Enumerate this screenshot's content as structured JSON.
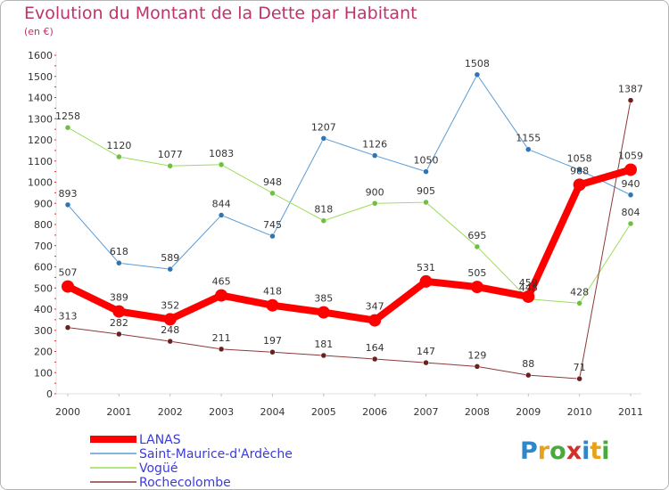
{
  "title": "Evolution du Montant de la Dette par Habitant",
  "subtitle": "(en €)",
  "brand": {
    "letters": [
      {
        "char": "P",
        "color": "#2f86c8"
      },
      {
        "char": "r",
        "color": "#e8a21a"
      },
      {
        "char": "o",
        "color": "#49a83e"
      },
      {
        "char": "x",
        "color": "#d0312d"
      },
      {
        "char": "i",
        "color": "#2f86c8"
      },
      {
        "char": "t",
        "color": "#e8a21a"
      },
      {
        "char": "i",
        "color": "#49a83e"
      }
    ]
  },
  "chart_data": {
    "type": "line",
    "x": [
      "2000",
      "2001",
      "2002",
      "2003",
      "2004",
      "2005",
      "2006",
      "2007",
      "2008",
      "2009",
      "2010",
      "2011"
    ],
    "ylim": [
      0,
      1600
    ],
    "yticks": [
      0,
      100,
      200,
      300,
      400,
      500,
      600,
      700,
      800,
      900,
      1000,
      1100,
      1200,
      1300,
      1400,
      1500,
      1600
    ],
    "grid": false,
    "legend_position": "bottom-left",
    "series": [
      {
        "name": "Saint-Maurice-d'Ardèche",
        "color": "#5b9bd5",
        "marker": "#2e75b6",
        "width": 1,
        "values": [
          893,
          618,
          589,
          844,
          745,
          1207,
          1126,
          1050,
          1508,
          1155,
          1058,
          940
        ]
      },
      {
        "name": "Vogüé",
        "color": "#9cdd5b",
        "marker": "#70c040",
        "width": 1,
        "values": [
          1258,
          1120,
          1077,
          1083,
          948,
          818,
          900,
          905,
          695,
          448,
          428,
          804
        ]
      },
      {
        "name": "Rochecolombe",
        "color": "#8b3a3a",
        "marker": "#6b1f1f",
        "width": 1,
        "values": [
          313,
          282,
          248,
          211,
          197,
          181,
          164,
          147,
          129,
          88,
          71,
          1387
        ]
      },
      {
        "name": "LANAS",
        "color": "#ff0000",
        "marker": "#ff0000",
        "width": 8,
        "values": [
          507,
          389,
          352,
          465,
          418,
          385,
          347,
          531,
          505,
          459,
          988,
          1059
        ]
      }
    ],
    "data_labels": [
      {
        "series": "Saint-Maurice-d'Ardèche",
        "labels": [
          "893",
          "618",
          "589",
          "844",
          "745",
          "1207",
          "1126",
          "1050",
          "1508",
          "1155",
          "1058",
          "940"
        ]
      },
      {
        "series": "Vogüé",
        "labels": [
          "1258",
          "1120",
          "1077",
          "1083",
          "948",
          "818",
          "900",
          "905",
          "695",
          "448",
          "428",
          "804"
        ]
      },
      {
        "series": "Rochecolombe",
        "labels": [
          "313",
          "282",
          "248",
          "211",
          "197",
          "181",
          "164",
          "147",
          "129",
          "88",
          "71",
          "1387"
        ]
      },
      {
        "series": "LANAS",
        "labels": [
          "507",
          "389",
          "352",
          "465",
          "418",
          "385",
          "347",
          "531",
          "505",
          "459",
          "988",
          "1059"
        ]
      }
    ],
    "legend": [
      "LANAS",
      "Saint-Maurice-d'Ardèche",
      "Vogüé",
      "Rochecolombe"
    ]
  }
}
